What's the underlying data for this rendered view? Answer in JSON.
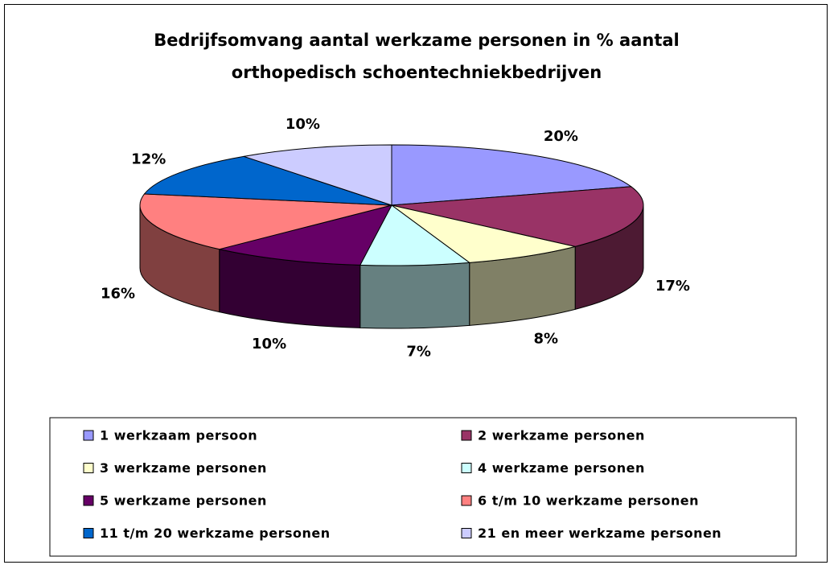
{
  "chart_data": {
    "type": "pie",
    "title": "Bedrijfsomvang aantal werkzame personen in % aantal orthopedisch schoentechniekbedrijven",
    "categories": [
      "1 werkzaam persoon",
      "2 werkzame personen",
      "3 werkzame personen",
      "4 werkzame personen",
      "5 werkzame personen",
      "6 t/m 10 werkzame personen",
      "11 t/m 20 werkzame personen",
      "21 en meer werkzame personen"
    ],
    "values": [
      20,
      17,
      8,
      7,
      10,
      16,
      12,
      10
    ],
    "value_labels": [
      "20%",
      "17%",
      "8%",
      "7%",
      "10%",
      "16%",
      "12%",
      "10%"
    ],
    "colors": [
      "#9999ff",
      "#993366",
      "#ffffcc",
      "#ccffff",
      "#660066",
      "#ff8080",
      "#0066cc",
      "#ccccff"
    ],
    "legend": "bottom"
  }
}
